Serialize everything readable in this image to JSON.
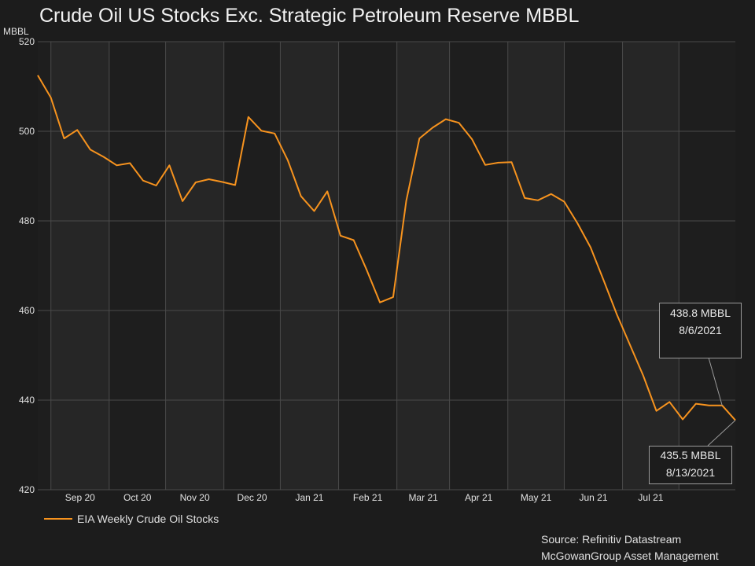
{
  "title": "Crude Oil US Stocks Exc. Strategic Petroleum Reserve MBBL",
  "y_unit": "MBBL",
  "legend": {
    "label": "EIA Weekly Crude Oil Stocks"
  },
  "source": {
    "line1": "Source: Refinitiv Datastream",
    "line2": "McGowanGroup Asset Management"
  },
  "colors": {
    "series": "#f7931e",
    "background": "#1c1c1c",
    "plot_a": "#1e1e1e",
    "plot_b": "#262626",
    "grid": "#4a4a4a",
    "callout_border": "#9a9a9a"
  },
  "callouts": {
    "first": {
      "line1": "438.8 MBBL",
      "line2": "8/6/2021"
    },
    "second": {
      "line1": "435.5 MBBL",
      "line2": "8/13/2021"
    }
  },
  "chart_data": {
    "type": "line",
    "title": "Crude Oil US Stocks Exc. Strategic Petroleum Reserve MBBL",
    "xlabel": "",
    "ylabel": "MBBL",
    "ylim": [
      420,
      520
    ],
    "yticks": [
      420,
      440,
      460,
      480,
      500,
      520
    ],
    "x_tick_labels": [
      "Sep 20",
      "Oct 20",
      "Nov 20",
      "Dec 20",
      "Jan 21",
      "Feb 21",
      "Mar 21",
      "Apr 21",
      "May 21",
      "Jun 21",
      "Jul 21"
    ],
    "grid": true,
    "legend_position": "bottom-left",
    "series": [
      {
        "name": "EIA Weekly Crude Oil Stocks",
        "x": [
          "2020-08-07",
          "2020-08-14",
          "2020-08-21",
          "2020-08-28",
          "2020-09-04",
          "2020-09-11",
          "2020-09-18",
          "2020-09-25",
          "2020-10-02",
          "2020-10-09",
          "2020-10-16",
          "2020-10-23",
          "2020-10-30",
          "2020-11-06",
          "2020-11-13",
          "2020-11-20",
          "2020-11-27",
          "2020-12-04",
          "2020-12-11",
          "2020-12-18",
          "2020-12-25",
          "2021-01-01",
          "2021-01-08",
          "2021-01-15",
          "2021-01-22",
          "2021-01-29",
          "2021-02-05",
          "2021-02-12",
          "2021-02-19",
          "2021-02-26",
          "2021-03-05",
          "2021-03-12",
          "2021-03-19",
          "2021-03-26",
          "2021-04-02",
          "2021-04-09",
          "2021-04-16",
          "2021-04-23",
          "2021-04-30",
          "2021-05-07",
          "2021-05-14",
          "2021-05-21",
          "2021-05-28",
          "2021-06-04",
          "2021-06-11",
          "2021-06-18",
          "2021-06-25",
          "2021-07-02",
          "2021-07-09",
          "2021-07-16",
          "2021-07-23",
          "2021-07-30",
          "2021-08-06",
          "2021-08-13"
        ],
        "values": [
          512.5,
          507.5,
          498.4,
          500.3,
          495.9,
          494.3,
          492.4,
          492.9,
          489.0,
          487.9,
          492.4,
          484.4,
          488.6,
          489.3,
          488.7,
          488.0,
          503.2,
          500.1,
          499.5,
          493.5,
          485.5,
          482.2,
          486.6,
          476.7,
          475.7,
          469.0,
          461.8,
          463.0,
          484.5,
          498.4,
          500.8,
          502.7,
          501.9,
          498.2,
          492.5,
          493.0,
          493.1,
          485.1,
          484.6,
          486.0,
          484.3,
          479.5,
          474.1,
          466.7,
          459.1,
          452.3,
          445.5,
          437.6,
          439.6,
          435.7,
          439.2,
          438.8,
          438.8,
          435.5
        ]
      }
    ]
  }
}
